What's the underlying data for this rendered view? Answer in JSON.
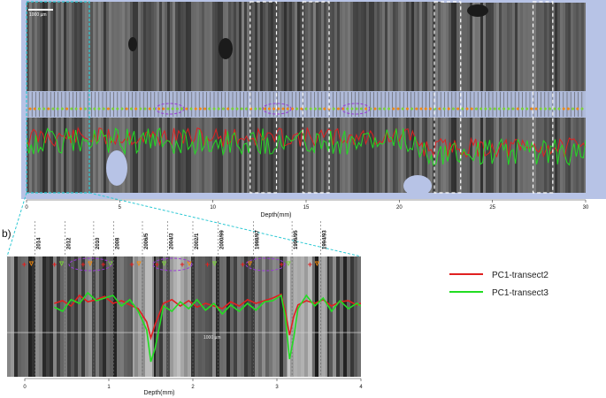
{
  "panel_b_label": "b)",
  "scale_bar_label": "1000 µm",
  "inset_scale_label": "1000 µm",
  "colors": {
    "top_background": "#b7c3e6",
    "transect2": "#e02020",
    "transect3": "#22dd22",
    "highlight_box": "#2ec9d4",
    "ellipse": "#9a38d8",
    "marker_orange": "#f08a10",
    "marker_green": "#7bd23a"
  },
  "chart_data": [
    {
      "id": "panel-a",
      "type": "line",
      "xlabel": "Depth(mm)",
      "xlim": [
        0,
        30
      ],
      "x_ticks": [
        0,
        5,
        10,
        15,
        20,
        25,
        30
      ],
      "highlight_range_mm": [
        0,
        5.5
      ],
      "dashed_boxes_mm": [
        [
          17.0,
          19.0
        ],
        [
          21.0,
          23.0
        ],
        [
          31.0,
          33.0
        ],
        [
          38.5,
          40.0
        ]
      ],
      "series": [
        {
          "name": "PC1-transect2",
          "seed": 11,
          "n": 240
        },
        {
          "name": "PC1-transect3",
          "seed": 29,
          "n": 240
        }
      ]
    },
    {
      "id": "panel-b",
      "type": "line",
      "xlabel": "Depth(mm)",
      "xlim": [
        0,
        4
      ],
      "x_ticks": [
        0,
        1,
        2,
        3,
        4
      ],
      "years": [
        "2014",
        "2012",
        "2010",
        "2008",
        "2006/5",
        "2004/3",
        "2002/1",
        "2000/99",
        "1998/97",
        "1996/95",
        "1994/93"
      ],
      "year_positions_mm": [
        0.12,
        0.48,
        0.82,
        1.06,
        1.4,
        1.7,
        2.0,
        2.3,
        2.72,
        3.18,
        3.52
      ],
      "series": [
        {
          "name": "PC1-transect2",
          "x": [
            0.35,
            0.45,
            0.55,
            0.65,
            0.75,
            0.85,
            0.95,
            1.05,
            1.15,
            1.25,
            1.35,
            1.45,
            1.5,
            1.55,
            1.65,
            1.75,
            1.85,
            1.95,
            2.05,
            2.15,
            2.25,
            2.35,
            2.45,
            2.55,
            2.65,
            2.75,
            2.85,
            2.95,
            3.05,
            3.1,
            3.15,
            3.2,
            3.25,
            3.35,
            3.45,
            3.55,
            3.65,
            3.75,
            3.85,
            3.95,
            4.0
          ],
          "y": [
            0.55,
            0.6,
            0.5,
            0.7,
            0.58,
            0.62,
            0.68,
            0.55,
            0.6,
            0.52,
            0.45,
            0.2,
            -0.1,
            0.15,
            0.55,
            0.62,
            0.5,
            0.6,
            0.48,
            0.55,
            0.5,
            0.45,
            0.58,
            0.5,
            0.62,
            0.55,
            0.6,
            0.65,
            0.72,
            0.4,
            -0.05,
            0.3,
            0.52,
            0.6,
            0.55,
            0.62,
            0.5,
            0.58,
            0.6,
            0.52,
            0.55
          ]
        },
        {
          "name": "PC1-transect3",
          "x": [
            0.35,
            0.45,
            0.55,
            0.65,
            0.75,
            0.85,
            0.95,
            1.05,
            1.15,
            1.25,
            1.35,
            1.45,
            1.5,
            1.55,
            1.65,
            1.75,
            1.85,
            1.95,
            2.05,
            2.15,
            2.25,
            2.35,
            2.45,
            2.55,
            2.65,
            2.75,
            2.85,
            2.95,
            3.05,
            3.1,
            3.15,
            3.2,
            3.25,
            3.35,
            3.45,
            3.55,
            3.65,
            3.75,
            3.85,
            3.95,
            4.0
          ],
          "y": [
            0.48,
            0.4,
            0.62,
            0.55,
            0.75,
            0.6,
            0.65,
            0.7,
            0.5,
            0.62,
            0.4,
            0.05,
            -0.55,
            -0.3,
            0.5,
            0.4,
            0.58,
            0.45,
            0.62,
            0.42,
            0.55,
            0.35,
            0.52,
            0.4,
            0.55,
            0.42,
            0.58,
            0.6,
            0.7,
            0.3,
            -0.5,
            -0.1,
            0.45,
            0.7,
            0.5,
            0.65,
            0.4,
            0.6,
            0.45,
            0.55,
            0.5
          ]
        }
      ],
      "legend_position": "right"
    }
  ]
}
